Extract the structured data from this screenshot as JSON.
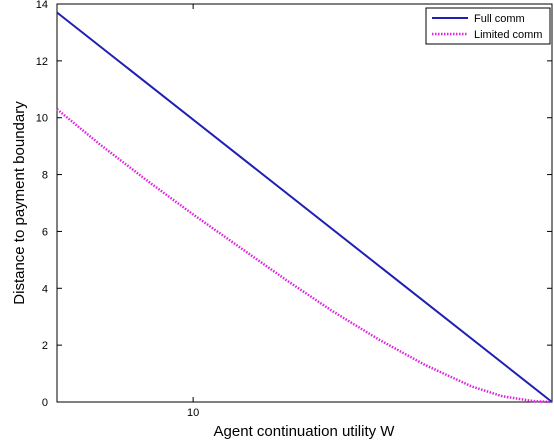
{
  "chart_data": {
    "type": "line",
    "title": "",
    "xlabel": "Agent continuation utility W",
    "ylabel": "Distance to payment boundary",
    "xlim": [
      5.6,
      21.6
    ],
    "ylim": [
      0,
      14
    ],
    "xticks": [
      {
        "value": 10,
        "label": "10"
      }
    ],
    "yticks": [
      {
        "value": 0,
        "label": "0"
      },
      {
        "value": 2,
        "label": "2"
      },
      {
        "value": 4,
        "label": "4"
      },
      {
        "value": 6,
        "label": "6"
      },
      {
        "value": 8,
        "label": "8"
      },
      {
        "value": 10,
        "label": "10"
      },
      {
        "value": 12,
        "label": "12"
      },
      {
        "value": 14,
        "label": "14"
      }
    ],
    "grid": false,
    "legend": "top-right",
    "series": [
      {
        "name": "Full comm",
        "color": "#1f1fb4",
        "style": "solid",
        "x": [
          5.6,
          21.6
        ],
        "y": [
          13.7,
          0.0
        ]
      },
      {
        "name": "Limited comm",
        "color": "#e020e0",
        "style": "dotted",
        "x": [
          5.6,
          7.0,
          8.5,
          10.0,
          11.5,
          13.0,
          14.5,
          16.0,
          17.5,
          19.0,
          20.0,
          21.0,
          21.6
        ],
        "y": [
          10.3,
          9.05,
          7.8,
          6.6,
          5.45,
          4.3,
          3.2,
          2.2,
          1.3,
          0.55,
          0.2,
          0.03,
          0.0
        ]
      }
    ]
  }
}
